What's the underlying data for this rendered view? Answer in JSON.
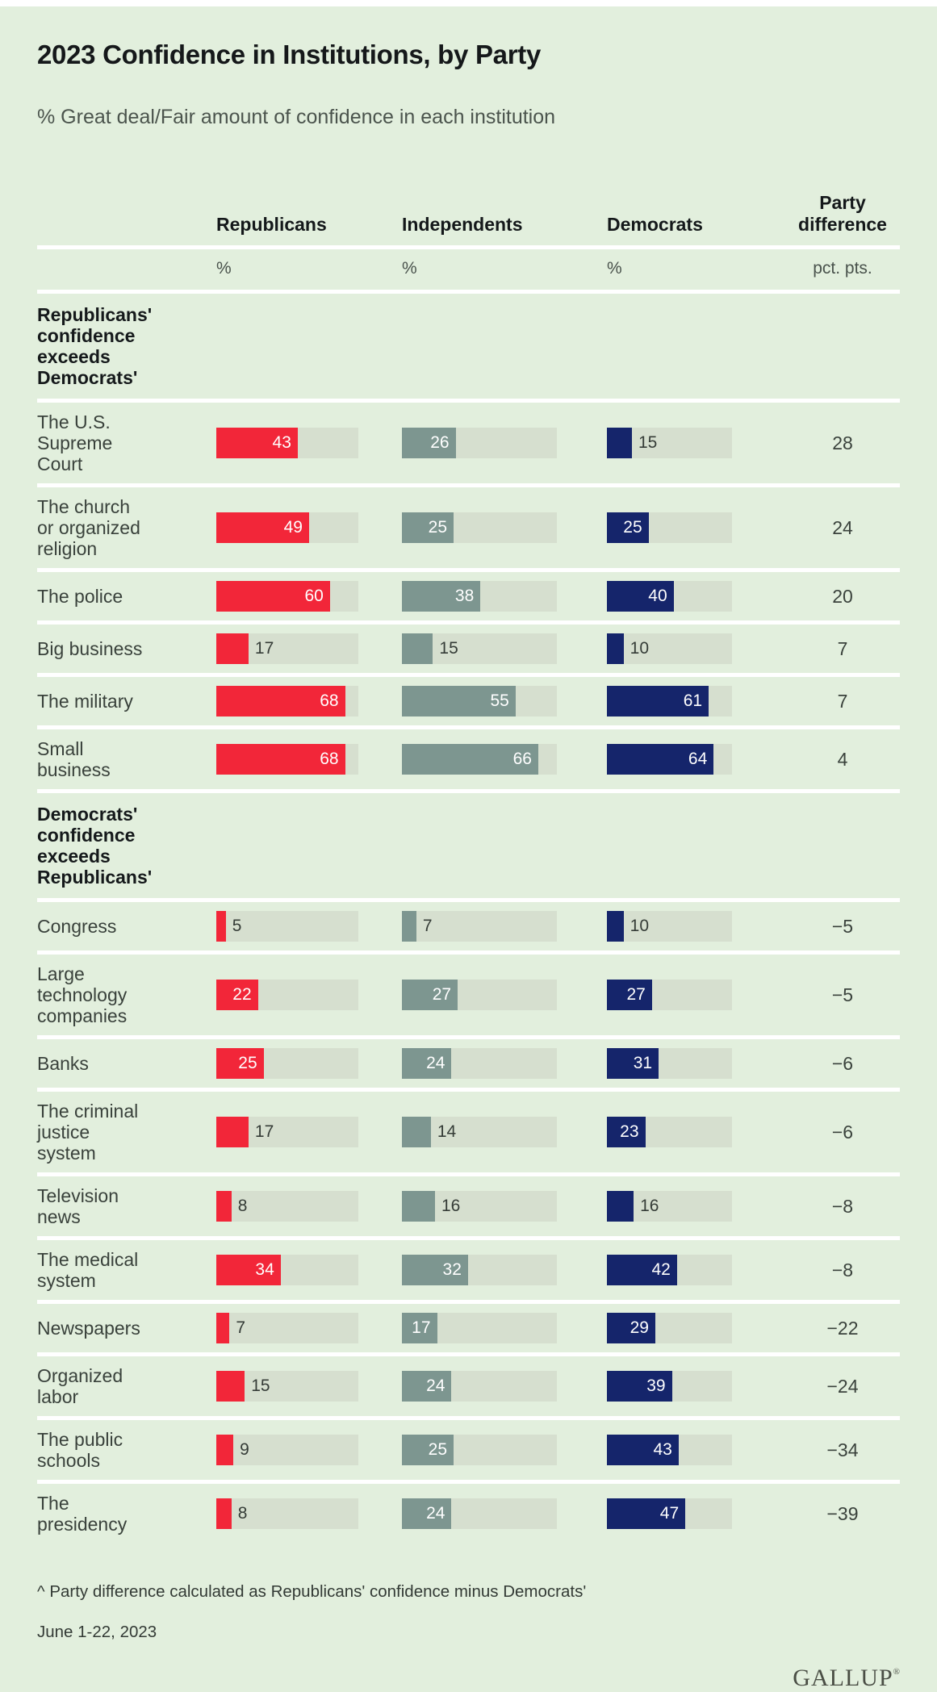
{
  "page": {
    "title": "2023 Confidence in Institutions, by Party",
    "subtitle": "% Great deal/Fair amount of confidence in each institution",
    "footnote": "^ Party difference calculated as Republicans' confidence minus Democrats'",
    "date_range": "June 1-22, 2023",
    "brand": "GALLUP",
    "brand_mark": "®"
  },
  "table": {
    "column_headers": [
      "Republicans",
      "Independents",
      "Democrats",
      "Party difference"
    ],
    "unit_row": [
      "%",
      "%",
      "%",
      "pct. pts."
    ]
  },
  "colors": {
    "background": "#e2efdd",
    "bar_track": "#d6dfcf",
    "republicans": "#f22639",
    "independents": "#7d9690",
    "democrats": "#15256b",
    "separator": "#ffffff",
    "outside_value_text": "#353c37",
    "inside_value_text": "#ffffff"
  },
  "chart_data": {
    "type": "bar",
    "title": "2023 Confidence in Institutions, by Party",
    "subtitle": "% Great deal/Fair amount of confidence in each institution",
    "units": {
      "bars": "%",
      "difference": "pct. pts."
    },
    "axis_max": 75,
    "grid": false,
    "legend_position": "column-headers",
    "series": [
      {
        "key": "republicans",
        "name": "Republicans",
        "color": "#f22639",
        "label_inside_min": 22
      },
      {
        "key": "independents",
        "name": "Independents",
        "color": "#7d9690",
        "label_inside_min": 17
      },
      {
        "key": "democrats",
        "name": "Democrats",
        "color": "#15256b",
        "label_inside_min": 23
      }
    ],
    "difference_label": "Party difference",
    "sections": [
      {
        "header": "Republicans' confidence exceeds Democrats'",
        "header_lines": [
          "Republicans'",
          "confidence",
          "exceeds",
          "Democrats'"
        ],
        "rows": [
          {
            "label": "The U.S. Supreme Court",
            "label_lines": [
              "The U.S.",
              "Supreme",
              "Court"
            ],
            "values": {
              "republicans": 43,
              "independents": 26,
              "democrats": 15
            },
            "difference": "28"
          },
          {
            "label": "The church or organized religion",
            "label_lines": [
              "The church",
              "or organized",
              "religion"
            ],
            "values": {
              "republicans": 49,
              "independents": 25,
              "democrats": 25
            },
            "difference": "24"
          },
          {
            "label": "The police",
            "label_lines": [
              "The police"
            ],
            "values": {
              "republicans": 60,
              "independents": 38,
              "democrats": 40
            },
            "difference": "20"
          },
          {
            "label": "Big business",
            "label_lines": [
              "Big business"
            ],
            "values": {
              "republicans": 17,
              "independents": 15,
              "democrats": 10
            },
            "difference": "7"
          },
          {
            "label": "The military",
            "label_lines": [
              "The military"
            ],
            "values": {
              "republicans": 68,
              "independents": 55,
              "democrats": 61
            },
            "difference": "7"
          },
          {
            "label": "Small business",
            "label_lines": [
              "Small",
              "business"
            ],
            "values": {
              "republicans": 68,
              "independents": 66,
              "democrats": 64
            },
            "difference": "4"
          }
        ]
      },
      {
        "header": "Democrats' confidence exceeds Republicans'",
        "header_lines": [
          "Democrats'",
          "confidence",
          "exceeds",
          "Republicans'"
        ],
        "rows": [
          {
            "label": "Congress",
            "label_lines": [
              "Congress"
            ],
            "values": {
              "republicans": 5,
              "independents": 7,
              "democrats": 10
            },
            "difference": "−5"
          },
          {
            "label": "Large technology companies",
            "label_lines": [
              "Large",
              "technology",
              "companies"
            ],
            "values": {
              "republicans": 22,
              "independents": 27,
              "democrats": 27
            },
            "difference": "−5"
          },
          {
            "label": "Banks",
            "label_lines": [
              "Banks"
            ],
            "values": {
              "republicans": 25,
              "independents": 24,
              "democrats": 31
            },
            "difference": "−6"
          },
          {
            "label": "The criminal justice system",
            "label_lines": [
              "The criminal",
              "justice",
              "system"
            ],
            "values": {
              "republicans": 17,
              "independents": 14,
              "democrats": 23
            },
            "difference": "−6"
          },
          {
            "label": "Television news",
            "label_lines": [
              "Television",
              "news"
            ],
            "values": {
              "republicans": 8,
              "independents": 16,
              "democrats": 16
            },
            "difference": "−8"
          },
          {
            "label": "The medical system",
            "label_lines": [
              "The medical",
              "system"
            ],
            "values": {
              "republicans": 34,
              "independents": 32,
              "democrats": 42
            },
            "difference": "−8"
          },
          {
            "label": "Newspapers",
            "label_lines": [
              "Newspapers"
            ],
            "values": {
              "republicans": 7,
              "independents": 17,
              "democrats": 29
            },
            "difference": "−22"
          },
          {
            "label": "Organized labor",
            "label_lines": [
              "Organized",
              "labor"
            ],
            "values": {
              "republicans": 15,
              "independents": 24,
              "democrats": 39
            },
            "difference": "−24"
          },
          {
            "label": "The public schools",
            "label_lines": [
              "The public",
              "schools"
            ],
            "values": {
              "republicans": 9,
              "independents": 25,
              "democrats": 43
            },
            "difference": "−34"
          },
          {
            "label": "The presidency",
            "label_lines": [
              "The",
              "presidency"
            ],
            "values": {
              "republicans": 8,
              "independents": 24,
              "democrats": 47
            },
            "difference": "−39"
          }
        ]
      }
    ]
  }
}
